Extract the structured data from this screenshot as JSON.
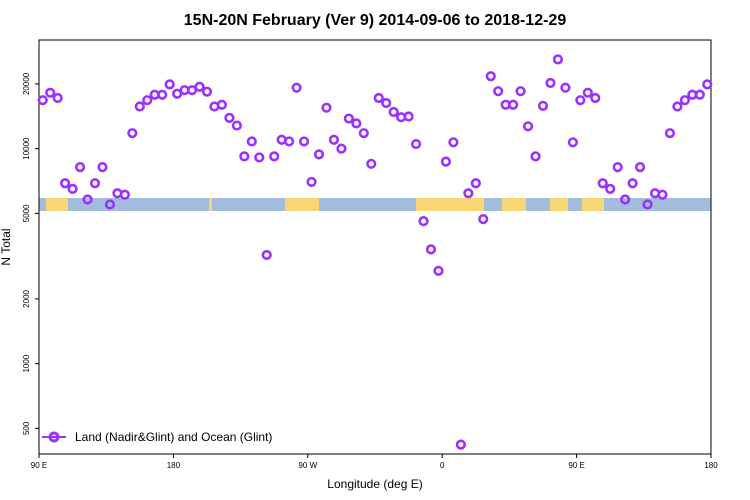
{
  "chart_data": {
    "type": "scatter",
    "title": "15N-20N February (Ver 9)   2014-09-06 to 2018-12-29",
    "xlabel": "Longitude (deg E)",
    "ylabel": "N Total",
    "y_scale": "log",
    "xlim": [
      0,
      360
    ],
    "ylim": [
      380,
      32000
    ],
    "xticks": [
      {
        "value": 0,
        "label": "90 E"
      },
      {
        "value": 72,
        "label": "180"
      },
      {
        "value": 144,
        "label": "90 W"
      },
      {
        "value": 216,
        "label": "0"
      },
      {
        "value": 288,
        "label": "90 E"
      },
      {
        "value": 360,
        "label": "180"
      }
    ],
    "yticks": [
      {
        "value": 500,
        "label": "500"
      },
      {
        "value": 1000,
        "label": "1000"
      },
      {
        "value": 2000,
        "label": "2000"
      },
      {
        "value": 5000,
        "label": "5000"
      },
      {
        "value": 10000,
        "label": "10000"
      },
      {
        "value": 20000,
        "label": "20000"
      }
    ],
    "legend": {
      "position": "bottom-left",
      "label": "Land (Nadir&Glint) and Ocean (Glint)"
    },
    "colors": {
      "series": "#9B30FF",
      "ocean": "#A3BBDC",
      "land": "#F7D774"
    },
    "series": [
      {
        "name": "Land (Nadir&Glint) and Ocean (Glint)",
        "points": [
          [
            2,
            16800
          ],
          [
            6,
            18200
          ],
          [
            10,
            17200
          ],
          [
            14,
            6900
          ],
          [
            18,
            6500
          ],
          [
            22,
            8200
          ],
          [
            26,
            5800
          ],
          [
            30,
            6900
          ],
          [
            34,
            8200
          ],
          [
            38,
            5500
          ],
          [
            42,
            6200
          ],
          [
            46,
            6100
          ],
          [
            50,
            11800
          ],
          [
            54,
            15700
          ],
          [
            58,
            16800
          ],
          [
            62,
            17800
          ],
          [
            66,
            17800
          ],
          [
            70,
            19900
          ],
          [
            74,
            18000
          ],
          [
            78,
            18700
          ],
          [
            82,
            18700
          ],
          [
            86,
            19400
          ],
          [
            90,
            18400
          ],
          [
            94,
            15700
          ],
          [
            98,
            16000
          ],
          [
            102,
            13900
          ],
          [
            106,
            12800
          ],
          [
            110,
            9200
          ],
          [
            114,
            10800
          ],
          [
            118,
            9100
          ],
          [
            122,
            3200
          ],
          [
            126,
            9200
          ],
          [
            130,
            11000
          ],
          [
            134,
            10800
          ],
          [
            138,
            19200
          ],
          [
            142,
            10800
          ],
          [
            146,
            7000
          ],
          [
            150,
            9400
          ],
          [
            154,
            15500
          ],
          [
            158,
            11000
          ],
          [
            162,
            10000
          ],
          [
            166,
            13800
          ],
          [
            170,
            13100
          ],
          [
            174,
            11800
          ],
          [
            178,
            8500
          ],
          [
            182,
            17200
          ],
          [
            186,
            16300
          ],
          [
            190,
            14800
          ],
          [
            194,
            14000
          ],
          [
            198,
            14100
          ],
          [
            202,
            10500
          ],
          [
            206,
            4600
          ],
          [
            210,
            3400
          ],
          [
            214,
            2700
          ],
          [
            218,
            8700
          ],
          [
            222,
            10700
          ],
          [
            226,
            420
          ],
          [
            230,
            6200
          ],
          [
            234,
            6900
          ],
          [
            238,
            4700
          ],
          [
            242,
            21700
          ],
          [
            246,
            18500
          ],
          [
            250,
            16000
          ],
          [
            254,
            16000
          ],
          [
            258,
            18500
          ],
          [
            262,
            12700
          ],
          [
            266,
            9200
          ],
          [
            270,
            15800
          ],
          [
            274,
            20200
          ],
          [
            278,
            26000
          ],
          [
            282,
            19200
          ],
          [
            286,
            10700
          ],
          [
            290,
            16800
          ],
          [
            294,
            18200
          ],
          [
            298,
            17200
          ],
          [
            302,
            6900
          ],
          [
            306,
            6500
          ],
          [
            310,
            8200
          ],
          [
            314,
            5800
          ],
          [
            318,
            6900
          ],
          [
            322,
            8200
          ],
          [
            326,
            5500
          ],
          [
            330,
            6200
          ],
          [
            334,
            6100
          ],
          [
            338,
            11800
          ],
          [
            342,
            15700
          ],
          [
            346,
            16800
          ],
          [
            350,
            17800
          ],
          [
            354,
            17800
          ],
          [
            358,
            19900
          ]
        ]
      }
    ]
  }
}
